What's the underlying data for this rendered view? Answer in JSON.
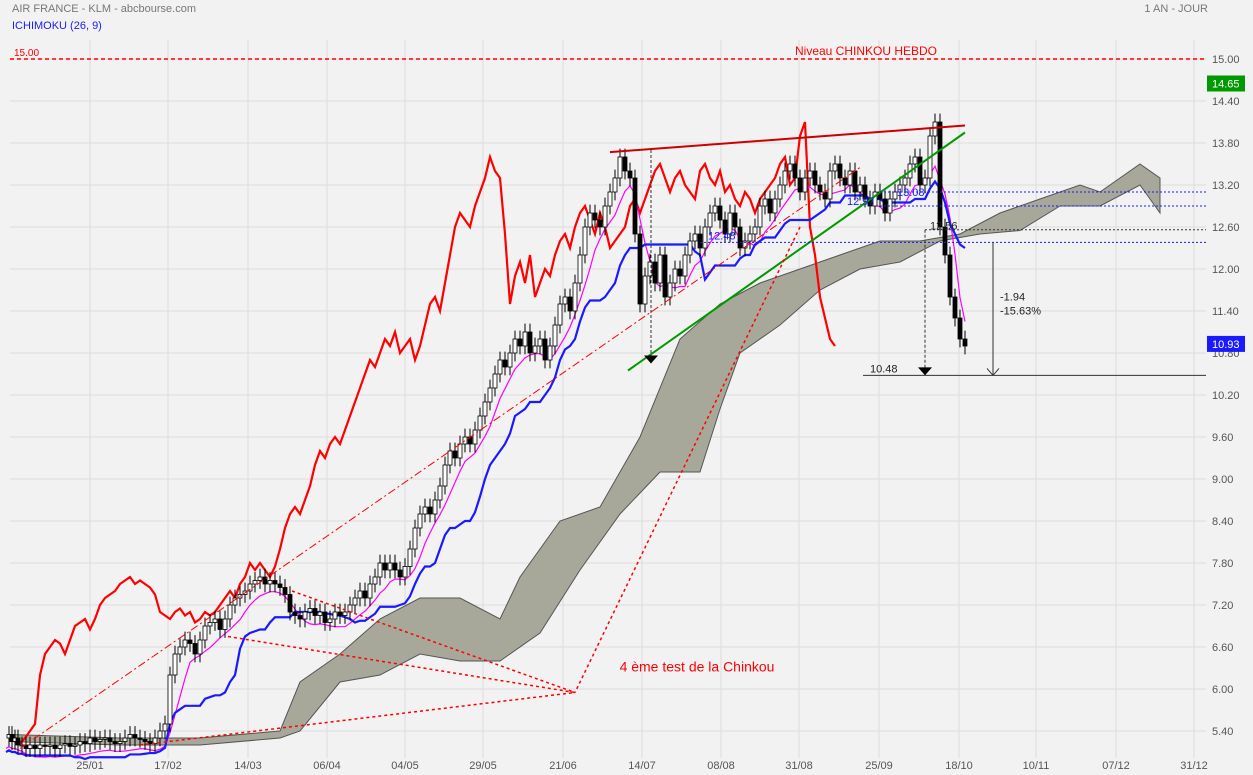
{
  "header": {
    "title": "AIR FRANCE - KLM - abcbourse.com",
    "indicator": "ICHIMOKU (26, 9)",
    "period": "1 AN - JOUR"
  },
  "chart_data": {
    "type": "candlestick",
    "title": "AIR FRANCE - KLM - abcbourse.com",
    "ylim": [
      5.0,
      15.2
    ],
    "y_ticks": [
      "15.00",
      "14.40",
      "13.80",
      "13.20",
      "12.60",
      "12.00",
      "11.40",
      "10.80",
      "10.20",
      "9.60",
      "9.00",
      "8.40",
      "7.80",
      "7.20",
      "6.60",
      "6.00",
      "5.40"
    ],
    "x_ticks": [
      "25/01",
      "17/02",
      "14/03",
      "06/04",
      "04/05",
      "29/05",
      "21/06",
      "14/07",
      "08/08",
      "31/08",
      "25/09",
      "18/10",
      "10/11",
      "07/12",
      "31/12"
    ],
    "last_price": "10.93",
    "high_price": "14.65",
    "level_label_left": "15.00",
    "chinkou_level_label": "Niveau CHINKOU HEBDO",
    "chinkou_level_value": 15.0,
    "annotations": {
      "test_text": "4 ème test de la Chinkou",
      "label_1248": "12.48",
      "label_1297": "12.97",
      "label_1308": "13.08",
      "label_1256": "12.56",
      "label_1048": "10.48",
      "label_drop_abs": "-1.94",
      "label_drop_pct": "-15.63%"
    },
    "series": [
      {
        "name": "ICHIMOKU (26, 9)",
        "color": "#1a1aff"
      }
    ],
    "colors": {
      "chikou": "#ff0000",
      "kijun": "#1a1aff",
      "tenkan": "#ff00ff",
      "cloud": "#a8a89a",
      "trend_red": "#cc0000",
      "trend_green": "#009900",
      "candle": "#000000",
      "last_price_bg": "#1a1aff",
      "high_price_bg": "#009900"
    },
    "close_x": [
      6,
      9,
      12,
      15,
      18,
      22,
      26,
      30,
      35,
      40,
      45,
      50,
      55,
      60,
      65,
      70,
      75,
      80,
      85,
      90,
      95,
      100,
      105,
      110,
      115,
      120,
      125,
      130,
      135,
      140,
      145,
      150,
      155,
      160,
      165,
      170,
      175,
      180,
      185,
      190,
      195,
      200,
      205,
      210,
      215,
      220,
      225,
      230,
      235,
      240,
      245,
      250,
      255,
      260,
      265,
      270,
      275,
      280,
      285,
      290,
      295,
      300,
      305,
      310,
      315,
      320,
      325,
      330,
      335,
      340,
      345,
      350,
      355,
      360,
      365,
      370,
      375,
      380,
      385,
      390,
      395,
      400,
      405,
      410,
      415,
      420,
      425,
      430,
      435,
      440,
      445,
      450,
      455,
      460,
      465,
      470,
      475,
      480,
      485,
      490,
      495,
      500,
      505,
      510,
      515,
      520,
      525,
      530,
      535,
      540,
      545,
      550,
      555,
      560,
      565,
      570,
      575,
      580,
      585,
      590,
      595,
      600,
      605,
      610,
      615,
      620,
      625,
      630,
      635,
      640,
      645,
      650,
      655,
      660,
      665,
      670,
      675,
      680,
      685,
      690,
      695,
      700,
      705,
      710,
      715,
      720,
      725,
      730,
      735,
      740,
      745,
      750,
      755,
      760,
      765,
      770,
      775,
      780,
      785,
      790,
      795,
      800,
      805,
      810,
      815,
      820,
      825,
      830,
      835,
      840,
      845,
      850,
      855,
      860,
      865,
      870,
      875,
      880,
      885,
      890,
      895,
      900,
      905,
      910,
      915,
      920,
      925,
      930,
      935,
      940,
      945,
      950,
      955,
      960,
      965,
      970,
      975,
      980,
      985,
      990,
      995,
      1000,
      1005,
      1010,
      1015,
      1020,
      1025,
      1030,
      1035,
      1040,
      1045
    ],
    "close_y": [
      5.3,
      5.35,
      5.25,
      5.3,
      5.2,
      5.2,
      5.15,
      5.2,
      5.15,
      5.2,
      5.18,
      5.2,
      5.15,
      5.2,
      5.22,
      5.18,
      5.2,
      5.25,
      5.22,
      5.3,
      5.25,
      5.28,
      5.3,
      5.25,
      5.22,
      5.25,
      5.3,
      5.35,
      5.3,
      5.28,
      5.25,
      5.22,
      5.3,
      5.4,
      5.5,
      6.2,
      6.5,
      6.6,
      6.7,
      6.65,
      6.5,
      6.7,
      6.9,
      6.95,
      7.0,
      6.85,
      7.0,
      7.2,
      7.3,
      7.35,
      7.4,
      7.5,
      7.55,
      7.6,
      7.5,
      7.55,
      7.5,
      7.45,
      7.35,
      7.1,
      7.05,
      7.0,
      7.1,
      7.15,
      7.05,
      7.1,
      6.95,
      7.0,
      7.1,
      7.05,
      7.1,
      7.2,
      7.3,
      7.4,
      7.3,
      7.5,
      7.6,
      7.8,
      7.7,
      7.8,
      7.7,
      7.6,
      7.75,
      8.0,
      8.3,
      8.5,
      8.6,
      8.5,
      8.7,
      8.9,
      9.2,
      9.4,
      9.3,
      9.5,
      9.6,
      9.5,
      9.7,
      9.9,
      10.1,
      10.3,
      10.5,
      10.7,
      10.6,
      10.8,
      11.0,
      10.9,
      11.1,
      10.8,
      10.9,
      11.0,
      10.7,
      10.9,
      11.2,
      11.5,
      11.6,
      11.4,
      11.8,
      12.2,
      12.6,
      12.8,
      12.7,
      12.6,
      12.9,
      13.1,
      13.3,
      13.6,
      13.4,
      13.3,
      12.5,
      11.5,
      11.9,
      12.1,
      11.8,
      12.2,
      11.6,
      11.8,
      12.0,
      11.9,
      12.2,
      12.4,
      12.5,
      12.3,
      12.6,
      12.8,
      12.9,
      12.7,
      12.5,
      12.8,
      12.6,
      12.3,
      12.4,
      12.5,
      12.6,
      12.9,
      13.0,
      12.8,
      13.0,
      13.2,
      13.4,
      13.5,
      13.3,
      13.1,
      13.3,
      13.4,
      13.2,
      13.1,
      13.0,
      13.4,
      13.5,
      13.3,
      13.2,
      13.4,
      13.1,
      13.2,
      13.0,
      12.9,
      13.1,
      13.0,
      12.8,
      13.0,
      13.1,
      13.2,
      13.3,
      13.5,
      13.6,
      13.2,
      13.3,
      13.9,
      14.1,
      12.6,
      12.2,
      11.6,
      11.3,
      11.0,
      10.9
    ]
  }
}
